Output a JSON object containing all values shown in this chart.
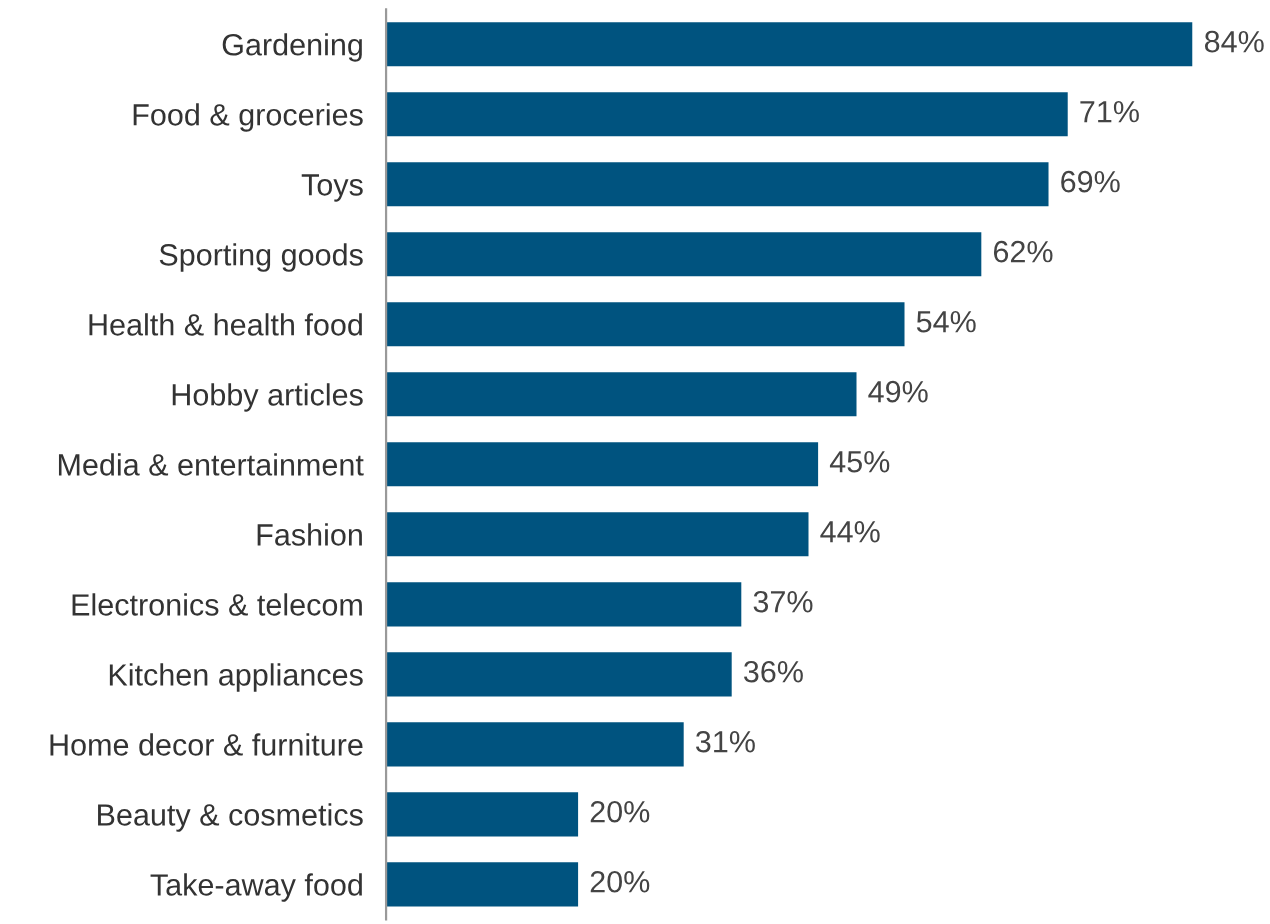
{
  "chart_data": {
    "type": "bar",
    "orientation": "horizontal",
    "categories": [
      "Gardening",
      "Food & groceries",
      "Toys",
      "Sporting goods",
      "Health & health food",
      "Hobby articles",
      "Media & entertainment",
      "Fashion",
      "Electronics & telecom",
      "Kitchen appliances",
      "Home decor & furniture",
      "Beauty & cosmetics",
      "Take-away food"
    ],
    "values": [
      84,
      71,
      69,
      62,
      54,
      49,
      45,
      44,
      37,
      36,
      31,
      20,
      20
    ],
    "value_labels": [
      "84%",
      "71%",
      "69%",
      "62%",
      "54%",
      "49%",
      "45%",
      "44%",
      "37%",
      "36%",
      "31%",
      "20%",
      "20%"
    ],
    "color": "#00537f",
    "grid": false,
    "legend": false
  }
}
